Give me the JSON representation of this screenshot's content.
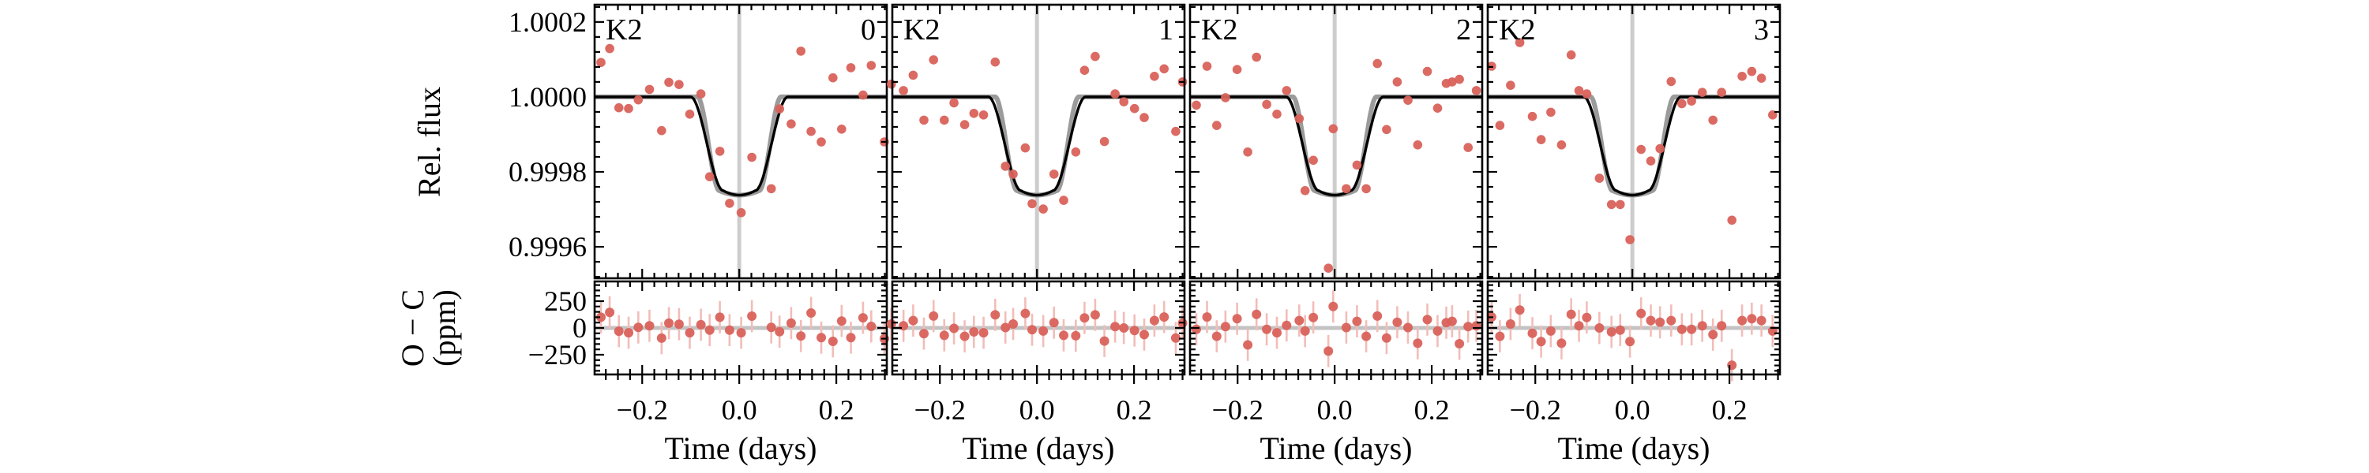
{
  "labels": {
    "instrument": "K2",
    "oc_line1": "O − C",
    "oc_line2": "(ppm)"
  },
  "colors": {
    "point": "#d9625b",
    "errorbar": "#f2bdb8",
    "model_fit": "#000000",
    "model_true": "#9b9b9b",
    "guide": "#cdcdcd",
    "zero_line": "#c3c3c3",
    "axis": "#000000"
  },
  "chart_data": {
    "type": "scatter",
    "title": "",
    "xlabel": "Time (days)",
    "ylabel_top": "Rel. flux",
    "ylabel_bottom": "O − C (ppm)",
    "legend": "none",
    "grid": false,
    "xlim": [
      -0.298,
      0.304
    ],
    "x_ticks": [
      -0.2,
      0.0,
      0.2
    ],
    "x_tick_labels": [
      "−0.2",
      "0.0",
      "0.2"
    ],
    "x_minor_step": 0.025,
    "flux_ylim": [
      0.999516,
      1.000246
    ],
    "flux_ticks": [
      1.0002,
      1.0,
      0.9998,
      0.9996
    ],
    "flux_tick_labels": [
      "1.0002",
      "1.0000",
      "0.9998",
      "0.9996"
    ],
    "flux_minor_step": 4e-05,
    "resid_ylim_ppm": [
      -434,
      434
    ],
    "resid_ticks_ppm": [
      250,
      0,
      -250
    ],
    "resid_tick_labels": [
      "250",
      "0",
      "−250"
    ],
    "resid_minor_step_ppm": 50,
    "errorbar_ppm": 150,
    "models": {
      "fit": {
        "total_dur": 0.2,
        "flat_dur": 0.066,
        "depth_ppm": 262,
        "bottom_curve_ppm": 12
      },
      "true": {
        "total_dur": 0.172,
        "flat_dur": 0.082,
        "depth_ppm": 262,
        "bottom_curve_ppm": 12
      }
    },
    "panels": [
      {
        "label": "0",
        "source": "K2",
        "points": [
          {
            "t": -0.285,
            "flux": 1.000092,
            "oc": 100
          },
          {
            "t": -0.267,
            "flux": 1.000129,
            "oc": 145
          },
          {
            "t": -0.248,
            "flux": 0.999971,
            "oc": -30
          },
          {
            "t": -0.228,
            "flux": 0.999969,
            "oc": -45
          },
          {
            "t": -0.208,
            "flux": 0.999992,
            "oc": 5
          },
          {
            "t": -0.185,
            "flux": 1.00002,
            "oc": 20
          },
          {
            "t": -0.16,
            "flux": 0.99991,
            "oc": -95
          },
          {
            "t": -0.145,
            "flux": 1.000039,
            "oc": 45
          },
          {
            "t": -0.124,
            "flux": 1.000033,
            "oc": 35
          },
          {
            "t": -0.102,
            "flux": 0.999954,
            "oc": -45
          },
          {
            "t": -0.079,
            "flux": 1.000008,
            "oc": 30
          },
          {
            "t": -0.061,
            "flux": 0.999787,
            "oc": -20
          },
          {
            "t": -0.04,
            "flux": 0.999855,
            "oc": 100
          },
          {
            "t": -0.02,
            "flux": 0.999716,
            "oc": -20
          },
          {
            "t": 0.004,
            "flux": 0.999691,
            "oc": -45
          },
          {
            "t": 0.026,
            "flux": 0.999839,
            "oc": 110
          },
          {
            "t": 0.066,
            "flux": 0.999755,
            "oc": 5
          },
          {
            "t": 0.083,
            "flux": 0.999968,
            "oc": -35
          },
          {
            "t": 0.107,
            "flux": 0.999928,
            "oc": 45
          },
          {
            "t": 0.127,
            "flux": 1.000122,
            "oc": -75
          },
          {
            "t": 0.148,
            "flux": 0.999908,
            "oc": 140
          },
          {
            "t": 0.169,
            "flux": 0.99988,
            "oc": -90
          },
          {
            "t": 0.193,
            "flux": 1.000051,
            "oc": -125
          },
          {
            "t": 0.211,
            "flux": 0.999914,
            "oc": 65
          },
          {
            "t": 0.23,
            "flux": 1.000078,
            "oc": -90
          },
          {
            "t": 0.255,
            "flux": 1.000005,
            "oc": 95
          },
          {
            "t": 0.272,
            "flux": 1.000084,
            "oc": 15
          },
          {
            "t": 0.299,
            "flux": 0.99988,
            "oc": -100
          }
        ]
      },
      {
        "label": "1",
        "source": "K2",
        "points": [
          {
            "t": -0.3,
            "flux": 1.000034,
            "oc": 37
          },
          {
            "t": -0.275,
            "flux": 1.000017,
            "oc": 20
          },
          {
            "t": -0.255,
            "flux": 1.000058,
            "oc": 69
          },
          {
            "t": -0.233,
            "flux": 0.999938,
            "oc": -53
          },
          {
            "t": -0.213,
            "flux": 1.000099,
            "oc": 111
          },
          {
            "t": -0.191,
            "flux": 0.999938,
            "oc": -69
          },
          {
            "t": -0.171,
            "flux": 0.999984,
            "oc": -4
          },
          {
            "t": -0.149,
            "flux": 0.999926,
            "oc": -78
          },
          {
            "t": -0.13,
            "flux": 0.999956,
            "oc": -37
          },
          {
            "t": -0.11,
            "flux": 0.999952,
            "oc": -45
          },
          {
            "t": -0.086,
            "flux": 1.000093,
            "oc": 122
          },
          {
            "t": -0.065,
            "flux": 0.999815,
            "oc": 4
          },
          {
            "t": -0.049,
            "flux": 0.999794,
            "oc": 37
          },
          {
            "t": -0.024,
            "flux": 0.999864,
            "oc": 135
          },
          {
            "t": -0.01,
            "flux": 0.999715,
            "oc": -17
          },
          {
            "t": 0.013,
            "flux": 0.999701,
            "oc": -29
          },
          {
            "t": 0.035,
            "flux": 0.999794,
            "oc": 49
          },
          {
            "t": 0.055,
            "flux": 0.999724,
            "oc": -69
          },
          {
            "t": 0.08,
            "flux": 0.999853,
            "oc": -73
          },
          {
            "t": 0.098,
            "flux": 1.000071,
            "oc": 94
          },
          {
            "t": 0.12,
            "flux": 1.000108,
            "oc": 122
          },
          {
            "t": 0.139,
            "flux": 0.999881,
            "oc": -122
          },
          {
            "t": 0.161,
            "flux": 1.000008,
            "oc": 13
          },
          {
            "t": 0.179,
            "flux": 0.999987,
            "oc": 0
          },
          {
            "t": 0.201,
            "flux": 0.999969,
            "oc": -24
          },
          {
            "t": 0.221,
            "flux": 0.999945,
            "oc": -62
          },
          {
            "t": 0.242,
            "flux": 1.000055,
            "oc": 69
          },
          {
            "t": 0.262,
            "flux": 1.000075,
            "oc": 102
          },
          {
            "t": 0.286,
            "flux": 0.999908,
            "oc": -94
          },
          {
            "t": 0.3,
            "flux": 1.00004,
            "oc": 45
          }
        ]
      },
      {
        "label": "2",
        "source": "K2",
        "points": [
          {
            "t": -0.285,
            "flux": 0.999978,
            "oc": -13
          },
          {
            "t": -0.263,
            "flux": 1.000082,
            "oc": 102
          },
          {
            "t": -0.243,
            "flux": 0.999924,
            "oc": -78
          },
          {
            "t": -0.225,
            "flux": 0.999998,
            "oc": 13
          },
          {
            "t": -0.201,
            "flux": 1.000073,
            "oc": 86
          },
          {
            "t": -0.179,
            "flux": 0.999853,
            "oc": -158
          },
          {
            "t": -0.161,
            "flux": 1.000106,
            "oc": 127
          },
          {
            "t": -0.14,
            "flux": 0.99998,
            "oc": -13
          },
          {
            "t": -0.119,
            "flux": 0.999954,
            "oc": -45
          },
          {
            "t": -0.099,
            "flux": 1.000017,
            "oc": 24
          },
          {
            "t": -0.073,
            "flux": 0.999942,
            "oc": 69
          },
          {
            "t": -0.061,
            "flux": 0.99975,
            "oc": -29
          },
          {
            "t": -0.044,
            "flux": 0.999831,
            "oc": 98
          },
          {
            "t": -0.013,
            "flux": 0.999543,
            "oc": -216
          },
          {
            "t": -0.003,
            "flux": 0.999915,
            "oc": 200
          },
          {
            "t": 0.024,
            "flux": 0.999755,
            "oc": 4
          },
          {
            "t": 0.046,
            "flux": 0.999818,
            "oc": 62
          },
          {
            "t": 0.065,
            "flux": 0.999755,
            "oc": -78
          },
          {
            "t": 0.088,
            "flux": 1.000089,
            "oc": 111
          },
          {
            "t": 0.107,
            "flux": 0.999913,
            "oc": -94
          },
          {
            "t": 0.129,
            "flux": 1.00004,
            "oc": 53
          },
          {
            "t": 0.151,
            "flux": 0.999991,
            "oc": 4
          },
          {
            "t": 0.171,
            "flux": 0.999872,
            "oc": -143
          },
          {
            "t": 0.191,
            "flux": 1.000068,
            "oc": 78
          },
          {
            "t": 0.212,
            "flux": 0.99997,
            "oc": -29
          },
          {
            "t": 0.23,
            "flux": 1.000036,
            "oc": 49
          },
          {
            "t": 0.242,
            "flux": 1.00004,
            "oc": 62
          },
          {
            "t": 0.257,
            "flux": 1.000047,
            "oc": -147
          },
          {
            "t": 0.275,
            "flux": 0.999865,
            "oc": 13
          },
          {
            "t": 0.292,
            "flux": 1.000017,
            "oc": 20
          }
        ]
      },
      {
        "label": "3",
        "source": "K2",
        "points": [
          {
            "t": -0.29,
            "flux": 1.000082,
            "oc": 102
          },
          {
            "t": -0.273,
            "flux": 0.999924,
            "oc": -78
          },
          {
            "t": -0.251,
            "flux": 1.000031,
            "oc": 37
          },
          {
            "t": -0.232,
            "flux": 1.000145,
            "oc": 167
          },
          {
            "t": -0.206,
            "flux": 0.999948,
            "oc": -49
          },
          {
            "t": -0.188,
            "flux": 0.999886,
            "oc": -127
          },
          {
            "t": -0.168,
            "flux": 0.999959,
            "oc": -29
          },
          {
            "t": -0.146,
            "flux": 0.999872,
            "oc": -143
          },
          {
            "t": -0.126,
            "flux": 1.000112,
            "oc": 127
          },
          {
            "t": -0.11,
            "flux": 1.000017,
            "oc": 20
          },
          {
            "t": -0.094,
            "flux": 1.000008,
            "oc": 98
          },
          {
            "t": -0.068,
            "flux": 0.999783,
            "oc": 0
          },
          {
            "t": -0.043,
            "flux": 0.999713,
            "oc": -37
          },
          {
            "t": -0.025,
            "flux": 0.999713,
            "oc": -20
          },
          {
            "t": -0.005,
            "flux": 0.999619,
            "oc": -127
          },
          {
            "t": 0.018,
            "flux": 0.99986,
            "oc": 135
          },
          {
            "t": 0.038,
            "flux": 0.999829,
            "oc": 69
          },
          {
            "t": 0.057,
            "flux": 0.999862,
            "oc": 53
          },
          {
            "t": 0.08,
            "flux": 1.000041,
            "oc": 69
          },
          {
            "t": 0.102,
            "flux": 0.999982,
            "oc": -13
          },
          {
            "t": 0.122,
            "flux": 0.999989,
            "oc": -13
          },
          {
            "t": 0.144,
            "flux": 1.000012,
            "oc": 20
          },
          {
            "t": 0.166,
            "flux": 0.999938,
            "oc": -62
          },
          {
            "t": 0.184,
            "flux": 1.000012,
            "oc": 20
          },
          {
            "t": 0.205,
            "flux": 0.999671,
            "oc": -347
          },
          {
            "t": 0.226,
            "flux": 1.000055,
            "oc": 69
          },
          {
            "t": 0.246,
            "flux": 1.000068,
            "oc": 86
          },
          {
            "t": 0.266,
            "flux": 1.00005,
            "oc": 69
          },
          {
            "t": 0.289,
            "flux": 0.999952,
            "oc": -29
          }
        ]
      }
    ]
  }
}
